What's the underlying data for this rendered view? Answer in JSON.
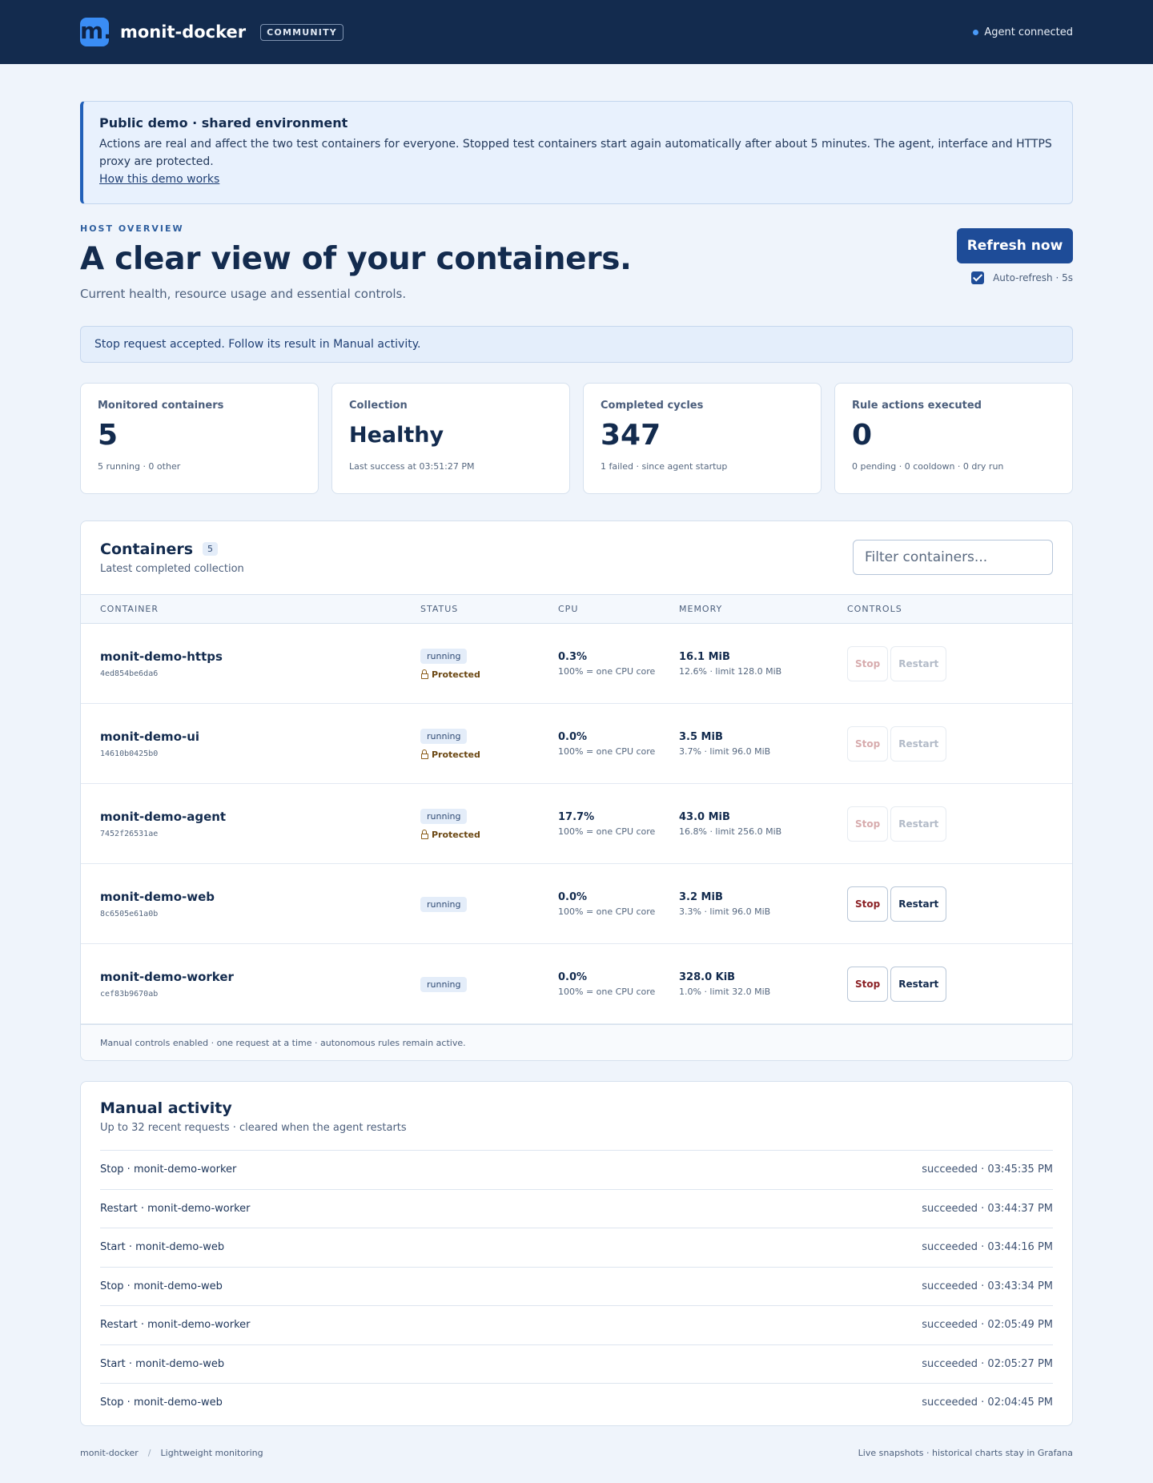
{
  "header": {
    "logo_letter": "m.",
    "app_name": "monit-docker",
    "edition": "COMMUNITY",
    "agent_status": "Agent connected"
  },
  "notice": {
    "title": "Public demo · shared environment",
    "text": "Actions are real and affect the two test containers for everyone. Stopped test containers start again automatically after about 5 minutes. The agent, interface and HTTPS proxy are protected.",
    "link": "How this demo works"
  },
  "hero": {
    "eyebrow": "HOST OVERVIEW",
    "title": "A clear view of your containers.",
    "subtitle": "Current health, resource usage and essential controls.",
    "refresh_label": "Refresh now",
    "auto_refresh_label": "Auto-refresh · 5s",
    "auto_refresh_checked": true
  },
  "banner": {
    "message": "Stop request accepted. Follow its result in Manual activity."
  },
  "stats": [
    {
      "label": "Monitored containers",
      "value": "5",
      "note": "5 running · 0 other"
    },
    {
      "label": "Collection",
      "value": "Healthy",
      "note": "Last success at 03:51:27 PM"
    },
    {
      "label": "Completed cycles",
      "value": "347",
      "note": "1 failed · since agent startup"
    },
    {
      "label": "Rule actions executed",
      "value": "0",
      "note": "0 pending · 0 cooldown · 0 dry run"
    }
  ],
  "containers": {
    "title": "Containers",
    "count": "5",
    "subtitle": "Latest completed collection",
    "filter_placeholder": "Filter containers...",
    "columns": [
      "CONTAINER",
      "STATUS",
      "CPU",
      "MEMORY",
      "CONTROLS"
    ],
    "stop_label": "Stop",
    "restart_label": "Restart",
    "protected_label": "Protected",
    "rows": [
      {
        "name": "monit-demo-https",
        "id": "4ed854be6da6",
        "status": "running",
        "protected": true,
        "cpu": "0.3%",
        "cpu_note": "100% = one CPU core",
        "mem": "16.1 MiB",
        "mem_note": "12.6% · limit 128.0 MiB"
      },
      {
        "name": "monit-demo-ui",
        "id": "14610b0425b0",
        "status": "running",
        "protected": true,
        "cpu": "0.0%",
        "cpu_note": "100% = one CPU core",
        "mem": "3.5 MiB",
        "mem_note": "3.7% · limit 96.0 MiB"
      },
      {
        "name": "monit-demo-agent",
        "id": "7452f26531ae",
        "status": "running",
        "protected": true,
        "cpu": "17.7%",
        "cpu_note": "100% = one CPU core",
        "mem": "43.0 MiB",
        "mem_note": "16.8% · limit 256.0 MiB"
      },
      {
        "name": "monit-demo-web",
        "id": "8c6505e61a0b",
        "status": "running",
        "protected": false,
        "cpu": "0.0%",
        "cpu_note": "100% = one CPU core",
        "mem": "3.2 MiB",
        "mem_note": "3.3% · limit 96.0 MiB"
      },
      {
        "name": "monit-demo-worker",
        "id": "cef83b9670ab",
        "status": "running",
        "protected": false,
        "cpu": "0.0%",
        "cpu_note": "100% = one CPU core",
        "mem": "328.0 KiB",
        "mem_note": "1.0% · limit 32.0 MiB"
      }
    ],
    "footer": "Manual controls enabled · one request at a time · autonomous rules remain active."
  },
  "activity": {
    "title": "Manual activity",
    "subtitle": "Up to 32 recent requests · cleared when the agent restarts",
    "items": [
      {
        "action": "Stop · monit-demo-worker",
        "result": "succeeded · 03:45:35 PM"
      },
      {
        "action": "Restart · monit-demo-worker",
        "result": "succeeded · 03:44:37 PM"
      },
      {
        "action": "Start · monit-demo-web",
        "result": "succeeded · 03:44:16 PM"
      },
      {
        "action": "Stop · monit-demo-web",
        "result": "succeeded · 03:43:34 PM"
      },
      {
        "action": "Restart · monit-demo-worker",
        "result": "succeeded · 02:05:49 PM"
      },
      {
        "action": "Start · monit-demo-web",
        "result": "succeeded · 02:05:27 PM"
      },
      {
        "action": "Stop · monit-demo-web",
        "result": "succeeded · 02:04:45 PM"
      }
    ]
  },
  "footer": {
    "left_app": "monit-docker",
    "separator": "/",
    "left_tagline": "Lightweight monitoring",
    "right": "Live snapshots · historical charts stay in Grafana"
  },
  "colors": {
    "topbar": "#132b4e",
    "accent": "#1e4c98",
    "logo": "#3a8df5",
    "stop": "#8c2226",
    "protected": "#6b4712"
  },
  "icons": {
    "status_dot": "dot-icon",
    "protected": "lock-icon",
    "auto_refresh": "checkbox-icon"
  }
}
